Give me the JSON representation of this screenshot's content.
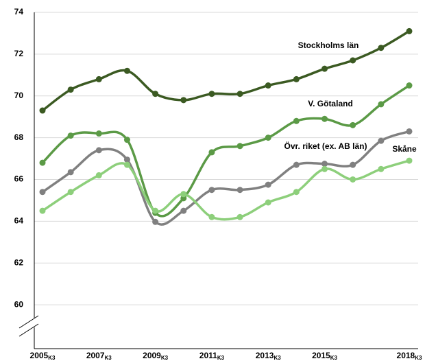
{
  "chart_data": {
    "type": "line",
    "categories": [
      "2005",
      null,
      "2007",
      null,
      "2009",
      null,
      "2011",
      null,
      "2013",
      null,
      "2015",
      null,
      null,
      "2018"
    ],
    "category_subscript": "K3",
    "series": [
      {
        "name": "Stockholms län",
        "color": "#3b5a22",
        "values": [
          69.3,
          70.3,
          70.8,
          71.2,
          70.1,
          69.8,
          70.1,
          70.1,
          70.5,
          70.8,
          71.3,
          71.7,
          72.3,
          73.1
        ]
      },
      {
        "name": "V. Götaland",
        "color": "#5b9a46",
        "values": [
          66.8,
          68.1,
          68.2,
          67.9,
          64.4,
          65.1,
          67.3,
          67.6,
          68.0,
          68.8,
          68.9,
          68.6,
          69.6,
          70.5
        ]
      },
      {
        "name": "Övr. riket (ex. AB län)",
        "color": "#808080",
        "values": [
          65.4,
          66.35,
          67.4,
          66.95,
          63.97,
          64.5,
          65.5,
          65.5,
          65.75,
          66.7,
          66.75,
          66.7,
          67.85,
          68.3
        ]
      },
      {
        "name": "Skåne",
        "color": "#8dcf7b",
        "values": [
          64.5,
          65.4,
          66.2,
          66.7,
          64.5,
          65.3,
          64.2,
          64.2,
          64.9,
          65.4,
          66.5,
          66.0,
          66.5,
          66.9
        ]
      }
    ],
    "ylim": [
      57.9,
      74
    ],
    "yticks": [
      60,
      62,
      64,
      66,
      68,
      70,
      72,
      74
    ],
    "grid": true
  }
}
